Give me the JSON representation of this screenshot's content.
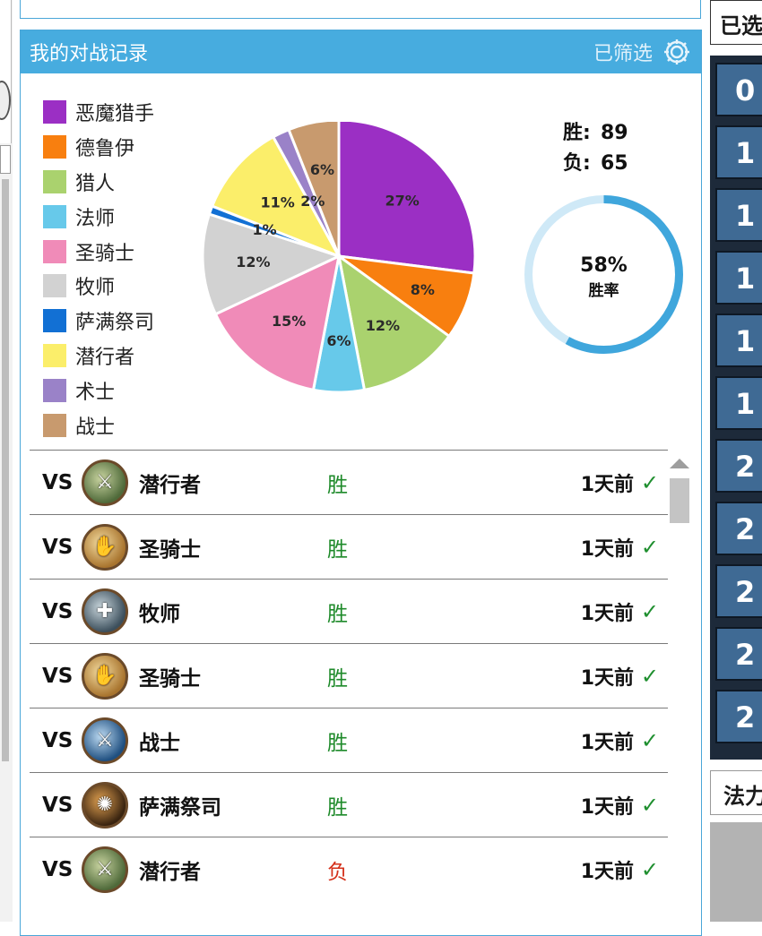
{
  "panel": {
    "title": "我的对战记录",
    "filter_label": "已筛选"
  },
  "chart_data": {
    "type": "pie",
    "slices": [
      {
        "name": "恶魔猎手",
        "value": 27,
        "label": "27%",
        "color": "#9b2fc4"
      },
      {
        "name": "德鲁伊",
        "value": 8,
        "label": "8%",
        "color": "#f87f0f"
      },
      {
        "name": "猎人",
        "value": 12,
        "label": "12%",
        "color": "#aad26e"
      },
      {
        "name": "法师",
        "value": 6,
        "label": "6%",
        "color": "#67c9ea"
      },
      {
        "name": "圣骑士",
        "value": 15,
        "label": "15%",
        "color": "#f08bb8"
      },
      {
        "name": "牧师",
        "value": 12,
        "label": "12%",
        "color": "#d2d2d2"
      },
      {
        "name": "萨满祭司",
        "value": 1,
        "label": "1%",
        "color": "#1270d4"
      },
      {
        "name": "潜行者",
        "value": 11,
        "label": "11%",
        "color": "#fbee6a"
      },
      {
        "name": "术士",
        "value": 2,
        "label": "2%",
        "color": "#9a82c8"
      },
      {
        "name": "战士",
        "value": 6,
        "label": "6%",
        "color": "#c89a6e"
      }
    ]
  },
  "stats": {
    "win_label": "胜:",
    "win_count": "89",
    "loss_label": "负:",
    "loss_count": "65",
    "win_rate": 58,
    "win_rate_text": "58%",
    "win_rate_label": "胜率",
    "ring_color": "#3fa6dc",
    "ring_track_color": "#cfe9f7"
  },
  "matches": [
    {
      "vs": "VS",
      "opponent": "潜行者",
      "result": "胜",
      "time": "1天前",
      "icon": "rogue-icon"
    },
    {
      "vs": "VS",
      "opponent": "圣骑士",
      "result": "胜",
      "time": "1天前",
      "icon": "paladin-icon"
    },
    {
      "vs": "VS",
      "opponent": "牧师",
      "result": "胜",
      "time": "1天前",
      "icon": "priest-icon"
    },
    {
      "vs": "VS",
      "opponent": "圣骑士",
      "result": "胜",
      "time": "1天前",
      "icon": "paladin-icon"
    },
    {
      "vs": "VS",
      "opponent": "战士",
      "result": "胜",
      "time": "1天前",
      "icon": "warrior-icon"
    },
    {
      "vs": "VS",
      "opponent": "萨满祭司",
      "result": "胜",
      "time": "1天前",
      "icon": "shaman-icon"
    },
    {
      "vs": "VS",
      "opponent": "潜行者",
      "result": "负",
      "time": "1天前",
      "icon": "rogue-icon"
    }
  ],
  "right_panel": {
    "top_label": "已选",
    "tiles": [
      "0",
      "1",
      "1",
      "1",
      "1",
      "1",
      "2",
      "2",
      "2",
      "2",
      "2"
    ],
    "bottom_label": "法力"
  }
}
